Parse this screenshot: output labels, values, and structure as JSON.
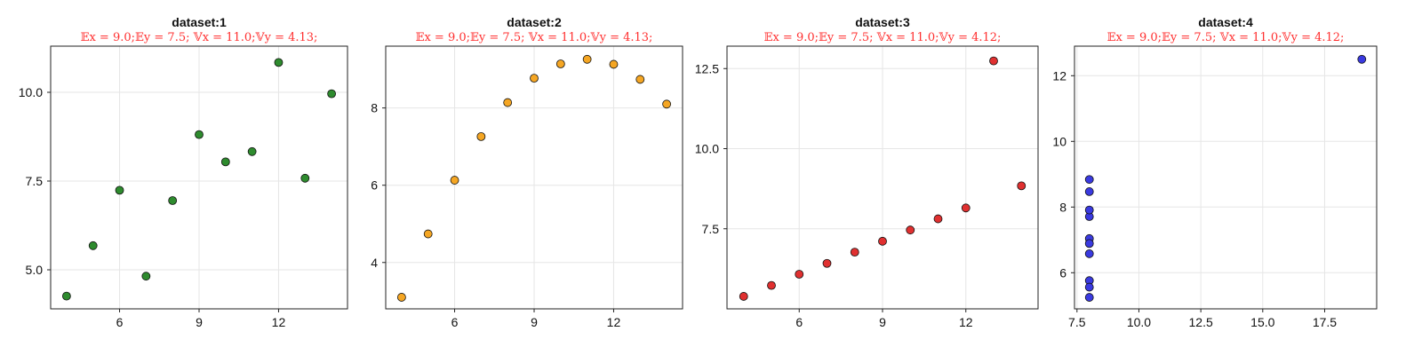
{
  "chart_data": [
    {
      "type": "scatter",
      "title": "dataset:1",
      "subtitle": "𝔼x = 9.0;𝔼y = 7.5; 𝕍x = 11.0;𝕍y = 4.13;",
      "color": "#2e8b2e",
      "x": [
        10,
        8,
        13,
        9,
        11,
        14,
        6,
        4,
        12,
        7,
        5
      ],
      "y": [
        8.04,
        6.95,
        7.58,
        8.81,
        8.33,
        9.96,
        7.24,
        4.26,
        10.84,
        4.82,
        5.68
      ],
      "xlim": [
        3.4,
        14.6
      ],
      "ylim": [
        3.9,
        11.3
      ],
      "xticks": [
        6,
        9,
        12
      ],
      "yticks": [
        5.0,
        7.5,
        10.0
      ],
      "xtick_labels": [
        "6",
        "9",
        "12"
      ],
      "ytick_labels": [
        "5.0",
        "7.5",
        "10.0"
      ],
      "grid": true
    },
    {
      "type": "scatter",
      "title": "dataset:2",
      "subtitle": "𝔼x = 9.0;𝔼y = 7.5; 𝕍x = 11.0;𝕍y = 4.13;",
      "color": "#f5a623",
      "x": [
        10,
        8,
        13,
        9,
        11,
        14,
        6,
        4,
        12,
        7,
        5
      ],
      "y": [
        9.14,
        8.14,
        8.74,
        8.77,
        9.26,
        8.1,
        6.13,
        3.1,
        9.13,
        7.26,
        4.74
      ],
      "xlim": [
        3.4,
        14.6
      ],
      "ylim": [
        2.8,
        9.6
      ],
      "xticks": [
        6,
        9,
        12
      ],
      "yticks": [
        4,
        6,
        8
      ],
      "xtick_labels": [
        "6",
        "9",
        "12"
      ],
      "ytick_labels": [
        "4",
        "6",
        "8"
      ],
      "grid": true
    },
    {
      "type": "scatter",
      "title": "dataset:3",
      "subtitle": "𝔼x = 9.0;𝔼y = 7.5; 𝕍x = 11.0;𝕍y = 4.12;",
      "color": "#e03030",
      "x": [
        10,
        8,
        13,
        9,
        11,
        14,
        6,
        4,
        12,
        7,
        5
      ],
      "y": [
        7.46,
        6.77,
        12.74,
        7.11,
        7.81,
        8.84,
        6.08,
        5.39,
        8.15,
        6.42,
        5.73
      ],
      "xlim": [
        3.4,
        14.6
      ],
      "ylim": [
        5.0,
        13.2
      ],
      "xticks": [
        6,
        9,
        12
      ],
      "yticks": [
        7.5,
        10.0,
        12.5
      ],
      "xtick_labels": [
        "6",
        "9",
        "12"
      ],
      "ytick_labels": [
        "7.5",
        "10.0",
        "12.5"
      ],
      "grid": true
    },
    {
      "type": "scatter",
      "title": "dataset:4",
      "subtitle": "𝔼x = 9.0;𝔼y = 7.5; 𝕍x = 11.0;𝕍y = 4.12;",
      "color": "#3a3ae0",
      "x": [
        8,
        8,
        8,
        8,
        8,
        8,
        8,
        19,
        8,
        8,
        8
      ],
      "y": [
        6.58,
        5.76,
        7.71,
        8.84,
        8.47,
        7.04,
        5.25,
        12.5,
        5.56,
        7.91,
        6.89
      ],
      "xlim": [
        7.4,
        19.6
      ],
      "ylim": [
        4.9,
        12.9
      ],
      "xticks": [
        7.5,
        10.0,
        12.5,
        15.0,
        17.5
      ],
      "yticks": [
        6,
        8,
        10,
        12
      ],
      "xtick_labels": [
        "7.5",
        "10.0",
        "12.5",
        "15.0",
        "17.5"
      ],
      "ytick_labels": [
        "6",
        "8",
        "10",
        "12"
      ],
      "grid": true
    }
  ]
}
